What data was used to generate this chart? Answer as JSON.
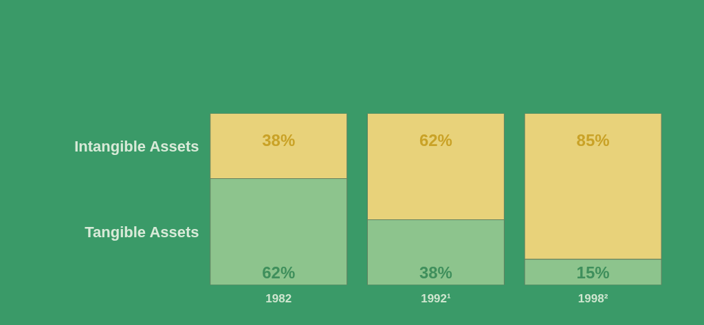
{
  "chart_data": {
    "type": "bar",
    "stacked": true,
    "categories": [
      "1982",
      "1992¹",
      "1998²"
    ],
    "series": [
      {
        "name": "Tangible Assets",
        "color": "#8dc48d",
        "values": [
          62,
          38,
          15
        ],
        "value_labels": [
          "62%",
          "38%",
          "15%"
        ]
      },
      {
        "name": "Intangible Assets",
        "color": "#e8d27a",
        "values": [
          38,
          62,
          85
        ],
        "value_labels": [
          "38%",
          "62%",
          "85%"
        ]
      }
    ],
    "tick_labels": "x",
    "grid": false,
    "legend": false
  }
}
